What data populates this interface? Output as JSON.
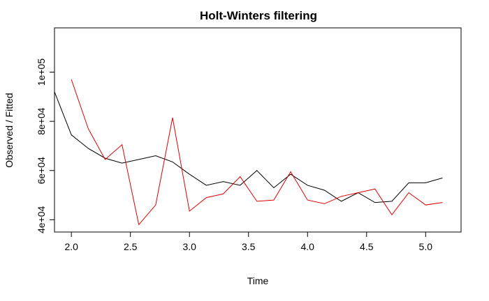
{
  "chart_data": {
    "type": "line",
    "title": "Holt-Winters filtering",
    "xlabel": "Time",
    "ylabel": "Observed / Fitted",
    "xlim": [
      1.857,
      5.3
    ],
    "ylim": [
      35000,
      118000
    ],
    "x_ticks": [
      2.0,
      2.5,
      3.0,
      3.5,
      4.0,
      4.5,
      5.0
    ],
    "x_tick_labels": [
      "2.0",
      "2.5",
      "3.0",
      "3.5",
      "4.0",
      "4.5",
      "5.0"
    ],
    "y_ticks": [
      40000,
      60000,
      80000,
      100000
    ],
    "y_tick_labels": [
      "4e+04",
      "6e+04",
      "8e+04",
      "1e+05"
    ],
    "grid": false,
    "series": [
      {
        "color": "#000000",
        "x": [
          1.857,
          2.0,
          2.143,
          2.286,
          2.429,
          2.571,
          2.714,
          2.857,
          3.0,
          3.143,
          3.286,
          3.429,
          3.571,
          3.714,
          3.857,
          4.0,
          4.143,
          4.286,
          4.429,
          4.571,
          4.714,
          4.857,
          5.0,
          5.143
        ],
        "values": [
          92000,
          74500,
          69000,
          65000,
          63000,
          64500,
          66000,
          63500,
          58500,
          54000,
          55500,
          54000,
          60000,
          53000,
          58500,
          54000,
          52000,
          47500,
          51000,
          47000,
          47500,
          55000,
          55000,
          57000
        ]
      },
      {
        "color": "#dd0000",
        "x": [
          2.0,
          2.143,
          2.286,
          2.429,
          2.571,
          2.714,
          2.857,
          3.0,
          3.143,
          3.286,
          3.429,
          3.571,
          3.714,
          3.857,
          4.0,
          4.143,
          4.286,
          4.429,
          4.571,
          4.714,
          4.857,
          5.0,
          5.143
        ],
        "values": [
          97000,
          77000,
          64500,
          70500,
          38000,
          46000,
          81500,
          43500,
          49000,
          50500,
          57500,
          47500,
          48000,
          59500,
          48000,
          46500,
          49500,
          51000,
          52500,
          42000,
          51000,
          46000,
          47000
        ]
      }
    ]
  }
}
